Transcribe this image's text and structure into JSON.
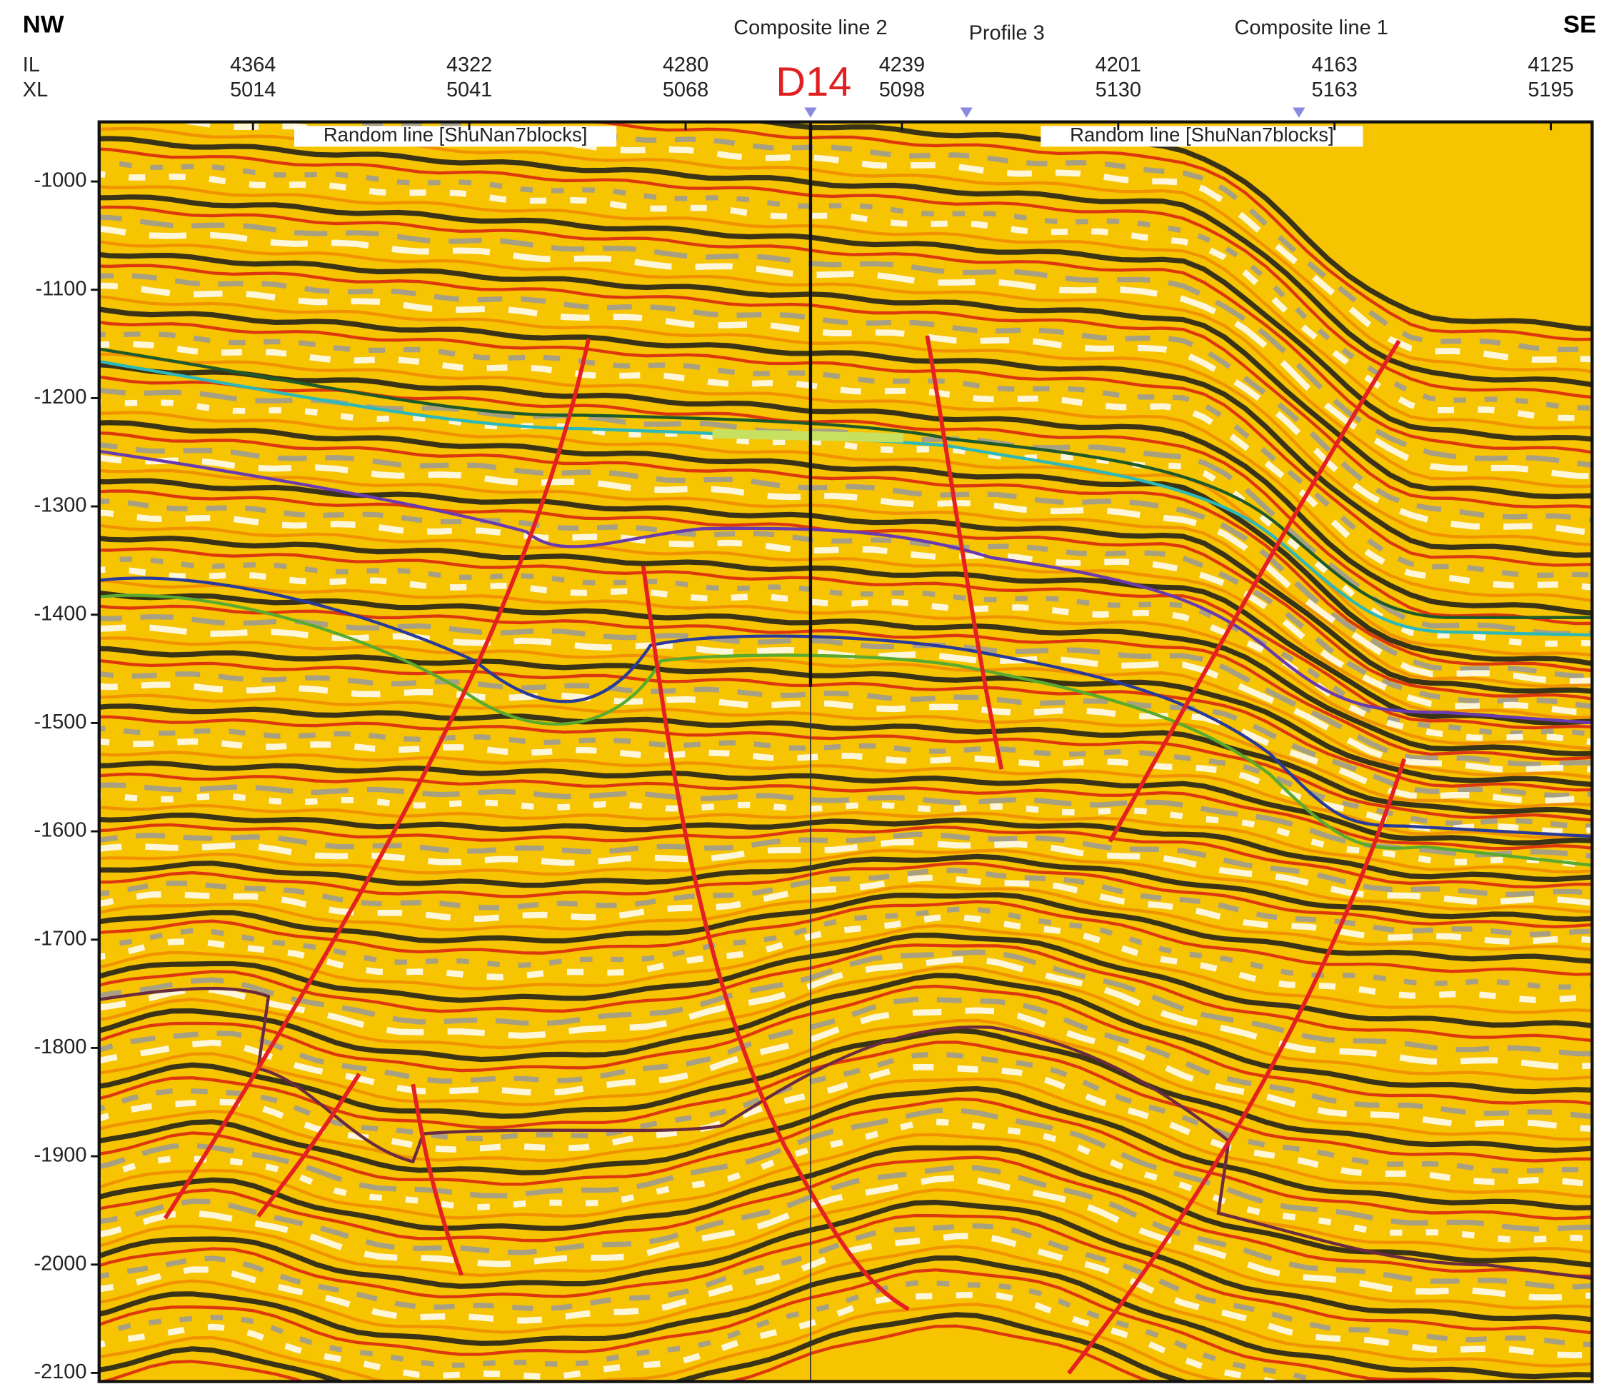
{
  "corners": {
    "left": "NW",
    "right": "SE"
  },
  "axis_labels": {
    "il": "IL",
    "xl": "XL"
  },
  "top_ticks": [
    {
      "il": "4364",
      "xl": "5014"
    },
    {
      "il": "4322",
      "xl": "5041"
    },
    {
      "il": "4280",
      "xl": "5068"
    },
    {
      "il": "4239",
      "xl": "5098"
    },
    {
      "il": "4201",
      "xl": "5130"
    },
    {
      "il": "4163",
      "xl": "5163"
    },
    {
      "il": "4125",
      "xl": "5195"
    }
  ],
  "well": "D14",
  "markers": [
    "Composite line 2",
    "Profile 3",
    "Composite line 1"
  ],
  "random_line_labels": [
    "Random line [ShuNan7blocks]",
    "Random line [ShuNan7blocks]"
  ],
  "depth_axis": {
    "ylim": [
      -945,
      -2108
    ],
    "yticks": [
      -1000,
      -1100,
      -1200,
      -1300,
      -1400,
      -1500,
      -1600,
      -1700,
      -1800,
      -1900,
      -2000,
      -2100
    ]
  }
}
